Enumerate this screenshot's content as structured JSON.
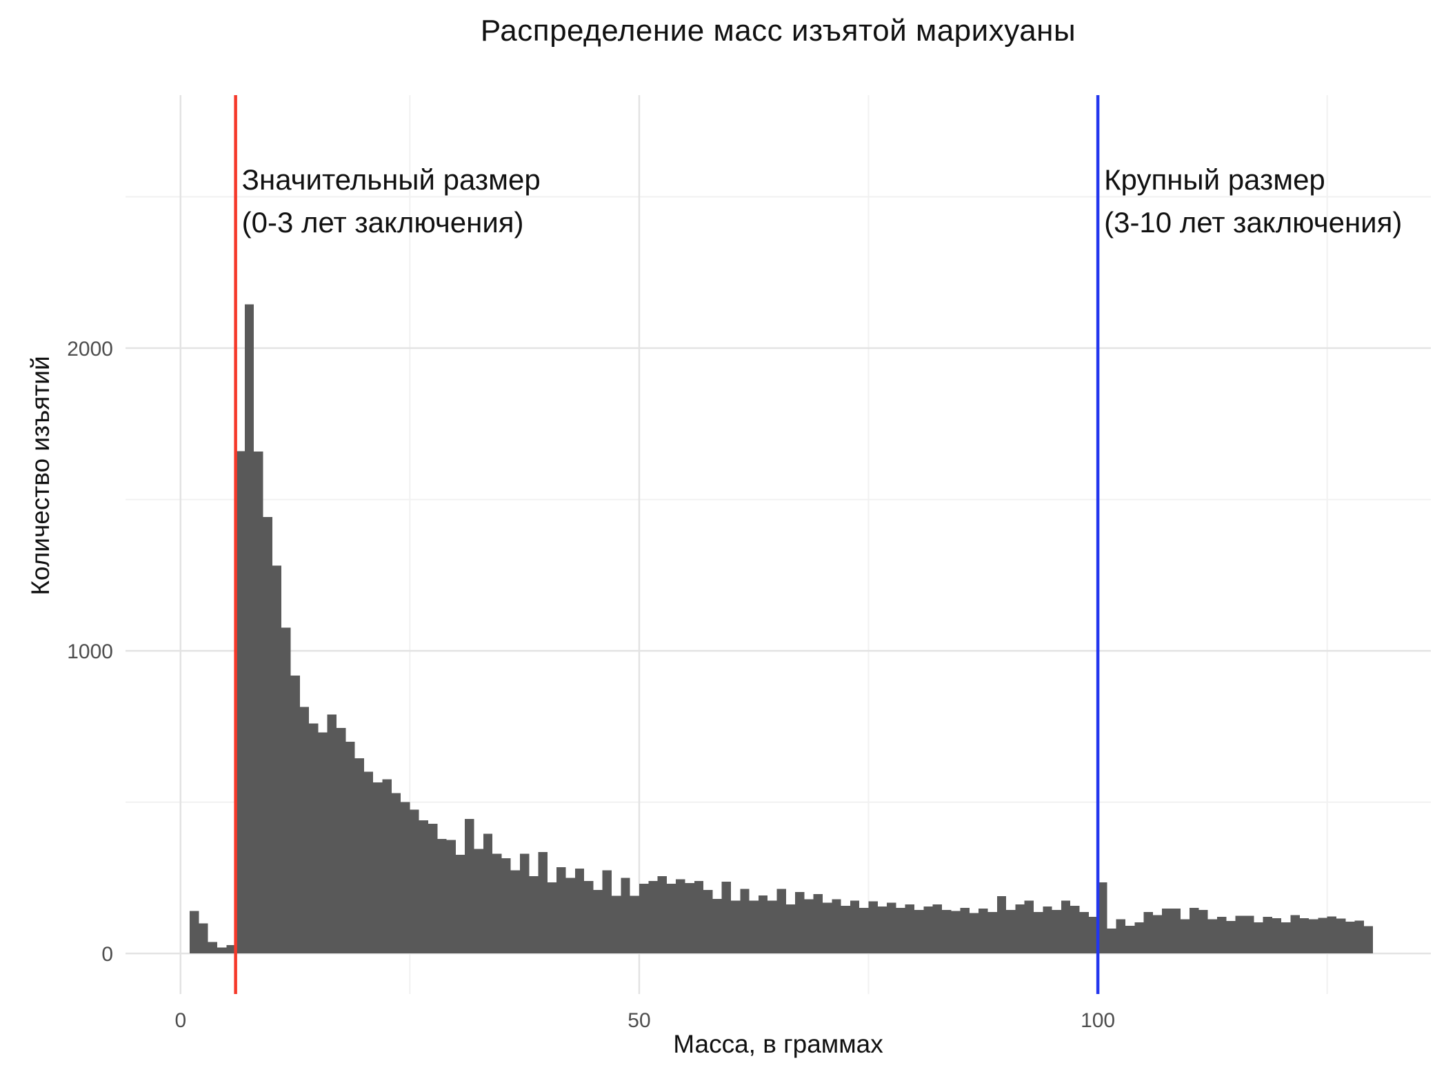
{
  "chart_data": {
    "type": "bar",
    "title": "Распределение масс изъятой марихуаны",
    "xlabel": "Масса, в граммах",
    "ylabel": "Количество изъятий",
    "grid": true,
    "legend": false,
    "background": "#ffffff",
    "bar_color": "#595959",
    "grid_major_color": "#e3e3e3",
    "grid_minor_color": "#f1f1f1",
    "tick_label_color": "#4d4d4d",
    "xlim": [
      -6,
      136.3
    ],
    "ylim": [
      -134,
      2836
    ],
    "x_ticks": {
      "major": [
        0,
        50,
        100
      ],
      "minor": [
        25,
        75,
        125
      ]
    },
    "y_ticks": {
      "major": [
        0,
        1000,
        2000
      ],
      "minor": [
        500,
        1500,
        2500
      ]
    },
    "bin_start": 1,
    "bin_width": 1,
    "values": [
      140,
      100,
      38,
      20,
      28,
      1660,
      2145,
      1658,
      1442,
      1282,
      1077,
      918,
      815,
      760,
      730,
      790,
      745,
      700,
      645,
      600,
      565,
      575,
      530,
      500,
      475,
      440,
      428,
      378,
      375,
      326,
      445,
      345,
      395,
      330,
      315,
      275,
      330,
      255,
      335,
      235,
      285,
      250,
      280,
      240,
      210,
      275,
      190,
      250,
      190,
      230,
      240,
      255,
      230,
      245,
      233,
      240,
      210,
      180,
      237,
      175,
      213,
      175,
      192,
      175,
      213,
      162,
      203,
      179,
      196,
      168,
      179,
      158,
      175,
      151,
      172,
      155,
      168,
      151,
      162,
      144,
      155,
      162,
      144,
      141,
      151,
      134,
      148,
      137,
      189,
      144,
      162,
      175,
      137,
      155,
      144,
      175,
      158,
      137,
      121,
      235,
      82,
      113,
      92,
      103,
      137,
      127,
      148,
      148,
      113,
      151,
      144,
      113,
      121,
      107,
      124,
      124,
      103,
      121,
      117,
      103,
      127,
      117,
      113,
      118,
      122,
      115,
      105,
      108,
      90
    ],
    "vlines": [
      {
        "x": 6,
        "color": "#f5392a",
        "label_line1": "Значительный размер",
        "label_line2": "(0-3 лет заключения)"
      },
      {
        "x": 100,
        "color": "#2336ee",
        "label_line1": "Крупный размер",
        "label_line2": "(3-10 лет заключения)"
      }
    ]
  }
}
